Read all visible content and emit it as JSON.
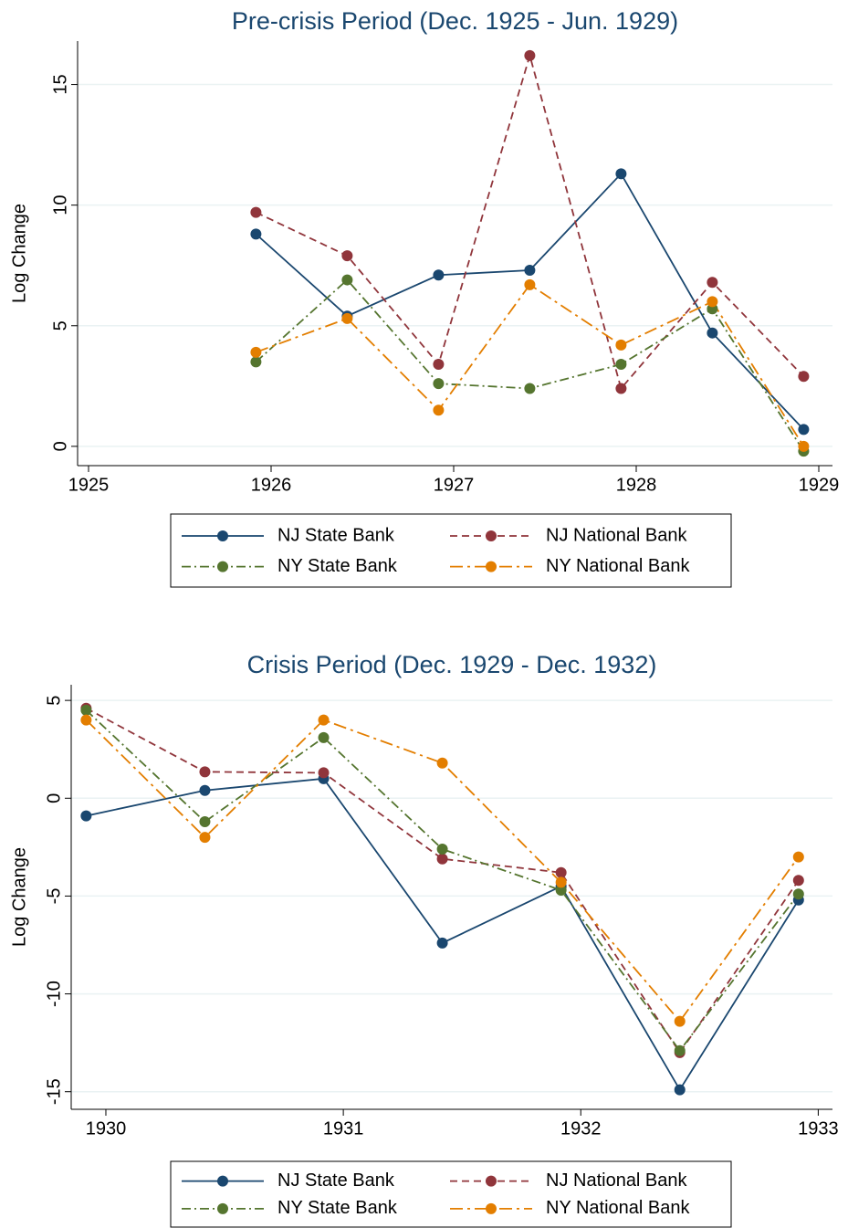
{
  "chart_data": [
    {
      "type": "line",
      "title": "Pre-crisis Period (Dec. 1925 - Jun. 1929)",
      "y_label": "Log Change",
      "x": [
        1925.917,
        1926.417,
        1926.917,
        1927.417,
        1927.917,
        1928.417,
        1928.917
      ],
      "xlim": [
        1924.94,
        1929.075
      ],
      "xticks": [
        1925,
        1926,
        1927,
        1928,
        1929
      ],
      "ylim": [
        -0.8,
        16.8
      ],
      "yticks": [
        0,
        5,
        10,
        15
      ],
      "grid": true,
      "series": [
        {
          "name": "NJ State Bank",
          "color": "#1a476f",
          "values": [
            8.8,
            5.4,
            7.1,
            7.3,
            11.3,
            4.7,
            0.7
          ]
        },
        {
          "name": "NJ National Bank",
          "color": "#90353b",
          "values": [
            9.7,
            7.9,
            3.4,
            16.2,
            2.4,
            6.8,
            2.9
          ]
        },
        {
          "name": "NY State Bank",
          "color": "#55752f",
          "values": [
            3.5,
            6.9,
            2.6,
            2.4,
            3.4,
            5.7,
            -0.2
          ]
        },
        {
          "name": "NY National Bank",
          "color": "#e37e00",
          "values": [
            3.9,
            5.3,
            1.5,
            6.7,
            4.2,
            6.0,
            0.0
          ]
        }
      ]
    },
    {
      "type": "line",
      "title": "Crisis Period (Dec. 1929 - Dec. 1932)",
      "y_label": "Log Change",
      "x": [
        1929.917,
        1930.417,
        1930.917,
        1931.417,
        1931.917,
        1932.417,
        1932.917
      ],
      "xlim": [
        1929.854,
        1933.06
      ],
      "xticks": [
        1930,
        1931,
        1932,
        1933
      ],
      "ylim": [
        -15.9,
        5.8
      ],
      "yticks": [
        5,
        0,
        -5,
        -10,
        -15
      ],
      "grid": true,
      "series": [
        {
          "name": "NJ State Bank",
          "color": "#1a476f",
          "values": [
            -0.9,
            0.4,
            1.0,
            -7.4,
            -4.5,
            -14.9,
            -5.2
          ]
        },
        {
          "name": "NJ National Bank",
          "color": "#90353b",
          "values": [
            4.6,
            1.35,
            1.3,
            -3.1,
            -3.8,
            -13.0,
            -4.2
          ]
        },
        {
          "name": "NY State Bank",
          "color": "#55752f",
          "values": [
            4.5,
            -1.2,
            3.1,
            -2.6,
            -4.7,
            -12.9,
            -4.9
          ]
        },
        {
          "name": "NY National Bank",
          "color": "#e37e00",
          "values": [
            4.0,
            -2.0,
            4.0,
            1.8,
            -4.3,
            -11.4,
            -3.0
          ]
        }
      ]
    }
  ]
}
